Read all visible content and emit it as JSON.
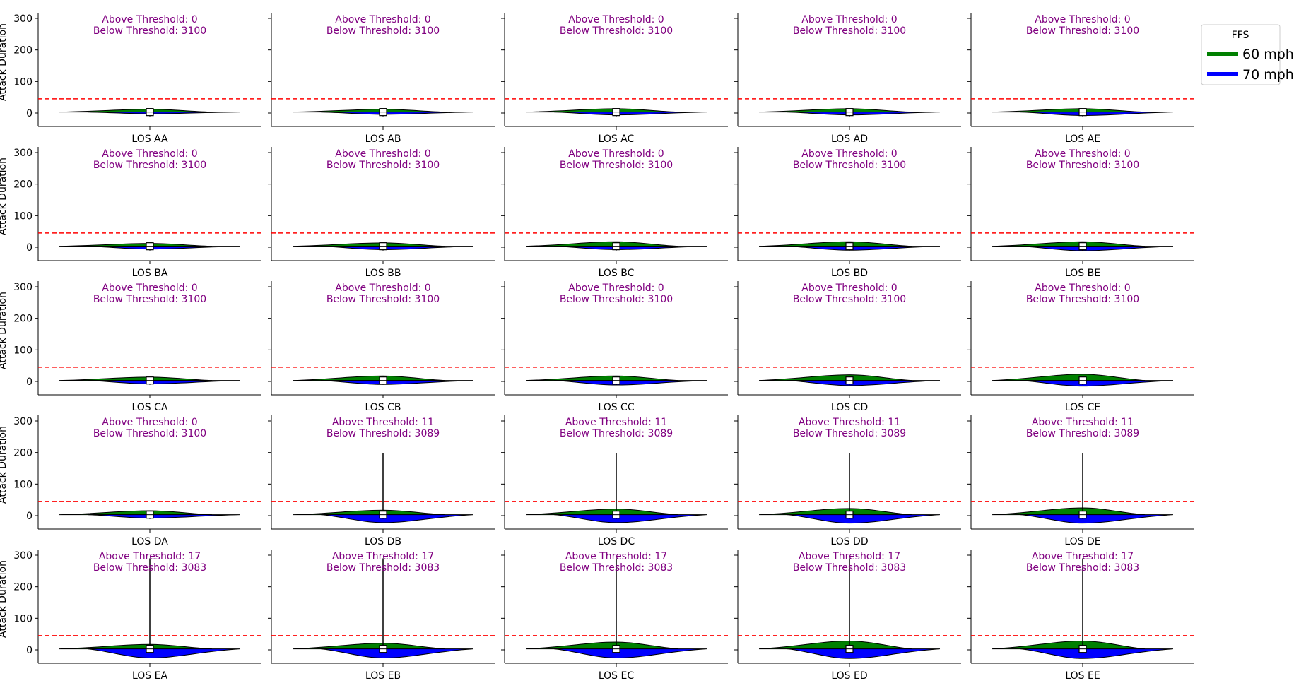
{
  "chart_data": {
    "type": "violin",
    "layout": "5x5 grid",
    "ylabel": "Attack Duration",
    "ylim": [
      -20,
      300
    ],
    "yticks": [
      0,
      100,
      200,
      300
    ],
    "threshold": 45,
    "threshold_color": "#ff0000",
    "annotation_color": "#800080",
    "above_label": "Above Threshold:",
    "below_label": "Below Threshold:",
    "legend": {
      "title": "FFS",
      "placement": "upper-right-outside",
      "entries": [
        {
          "label": "60 mph",
          "color": "#008000"
        },
        {
          "label": "70 mph",
          "color": "#0000ff"
        }
      ]
    },
    "panels": [
      {
        "label": "LOS AA",
        "above": 0,
        "below": 3100,
        "max": 11,
        "g": 2.5,
        "b": 1.5
      },
      {
        "label": "LOS AB",
        "above": 0,
        "below": 3100,
        "max": 12,
        "g": 2.5,
        "b": 2
      },
      {
        "label": "LOS AC",
        "above": 0,
        "below": 3100,
        "max": 12,
        "g": 3,
        "b": 2.5
      },
      {
        "label": "LOS AD",
        "above": 0,
        "below": 3100,
        "max": 12,
        "g": 3,
        "b": 2.5
      },
      {
        "label": "LOS AE",
        "above": 0,
        "below": 3100,
        "max": 12,
        "g": 3,
        "b": 3
      },
      {
        "label": "LOS BA",
        "above": 0,
        "below": 3100,
        "max": 13,
        "g": 2.5,
        "b": 2.5
      },
      {
        "label": "LOS BB",
        "above": 0,
        "below": 3100,
        "max": 13,
        "g": 3,
        "b": 3
      },
      {
        "label": "LOS BC",
        "above": 0,
        "below": 3100,
        "max": 13,
        "g": 4,
        "b": 3
      },
      {
        "label": "LOS BD",
        "above": 0,
        "below": 3100,
        "max": 14,
        "g": 4,
        "b": 3.5
      },
      {
        "label": "LOS BE",
        "above": 0,
        "below": 3100,
        "max": 14,
        "g": 4,
        "b": 4
      },
      {
        "label": "LOS CA",
        "above": 0,
        "below": 3100,
        "max": 14,
        "g": 3,
        "b": 3
      },
      {
        "label": "LOS CB",
        "above": 0,
        "below": 3100,
        "max": 15,
        "g": 4,
        "b": 3.5
      },
      {
        "label": "LOS CC",
        "above": 0,
        "below": 3100,
        "max": 15,
        "g": 4,
        "b": 4
      },
      {
        "label": "LOS CD",
        "above": 0,
        "below": 3100,
        "max": 16,
        "g": 5,
        "b": 4.5
      },
      {
        "label": "LOS CE",
        "above": 0,
        "below": 3100,
        "max": 16,
        "g": 5.5,
        "b": 5
      },
      {
        "label": "LOS DA",
        "above": 0,
        "below": 3100,
        "max": 14,
        "g": 3.5,
        "b": 3
      },
      {
        "label": "LOS DB",
        "above": 11,
        "below": 3089,
        "max": 197,
        "g": 4,
        "b": 7
      },
      {
        "label": "LOS DC",
        "above": 11,
        "below": 3089,
        "max": 197,
        "g": 5,
        "b": 7
      },
      {
        "label": "LOS DD",
        "above": 11,
        "below": 3089,
        "max": 197,
        "g": 5.5,
        "b": 7.5
      },
      {
        "label": "LOS DE",
        "above": 11,
        "below": 3089,
        "max": 197,
        "g": 6,
        "b": 7.5
      },
      {
        "label": "LOS EA",
        "above": 17,
        "below": 3083,
        "max": 290,
        "g": 4,
        "b": 8
      },
      {
        "label": "LOS EB",
        "above": 17,
        "below": 3083,
        "max": 290,
        "g": 5,
        "b": 8
      },
      {
        "label": "LOS EC",
        "above": 17,
        "below": 3083,
        "max": 290,
        "g": 6,
        "b": 8
      },
      {
        "label": "LOS ED",
        "above": 17,
        "below": 3083,
        "max": 290,
        "g": 7,
        "b": 8.5
      },
      {
        "label": "LOS EE",
        "above": 17,
        "below": 3083,
        "max": 290,
        "g": 7,
        "b": 8.5
      }
    ]
  }
}
